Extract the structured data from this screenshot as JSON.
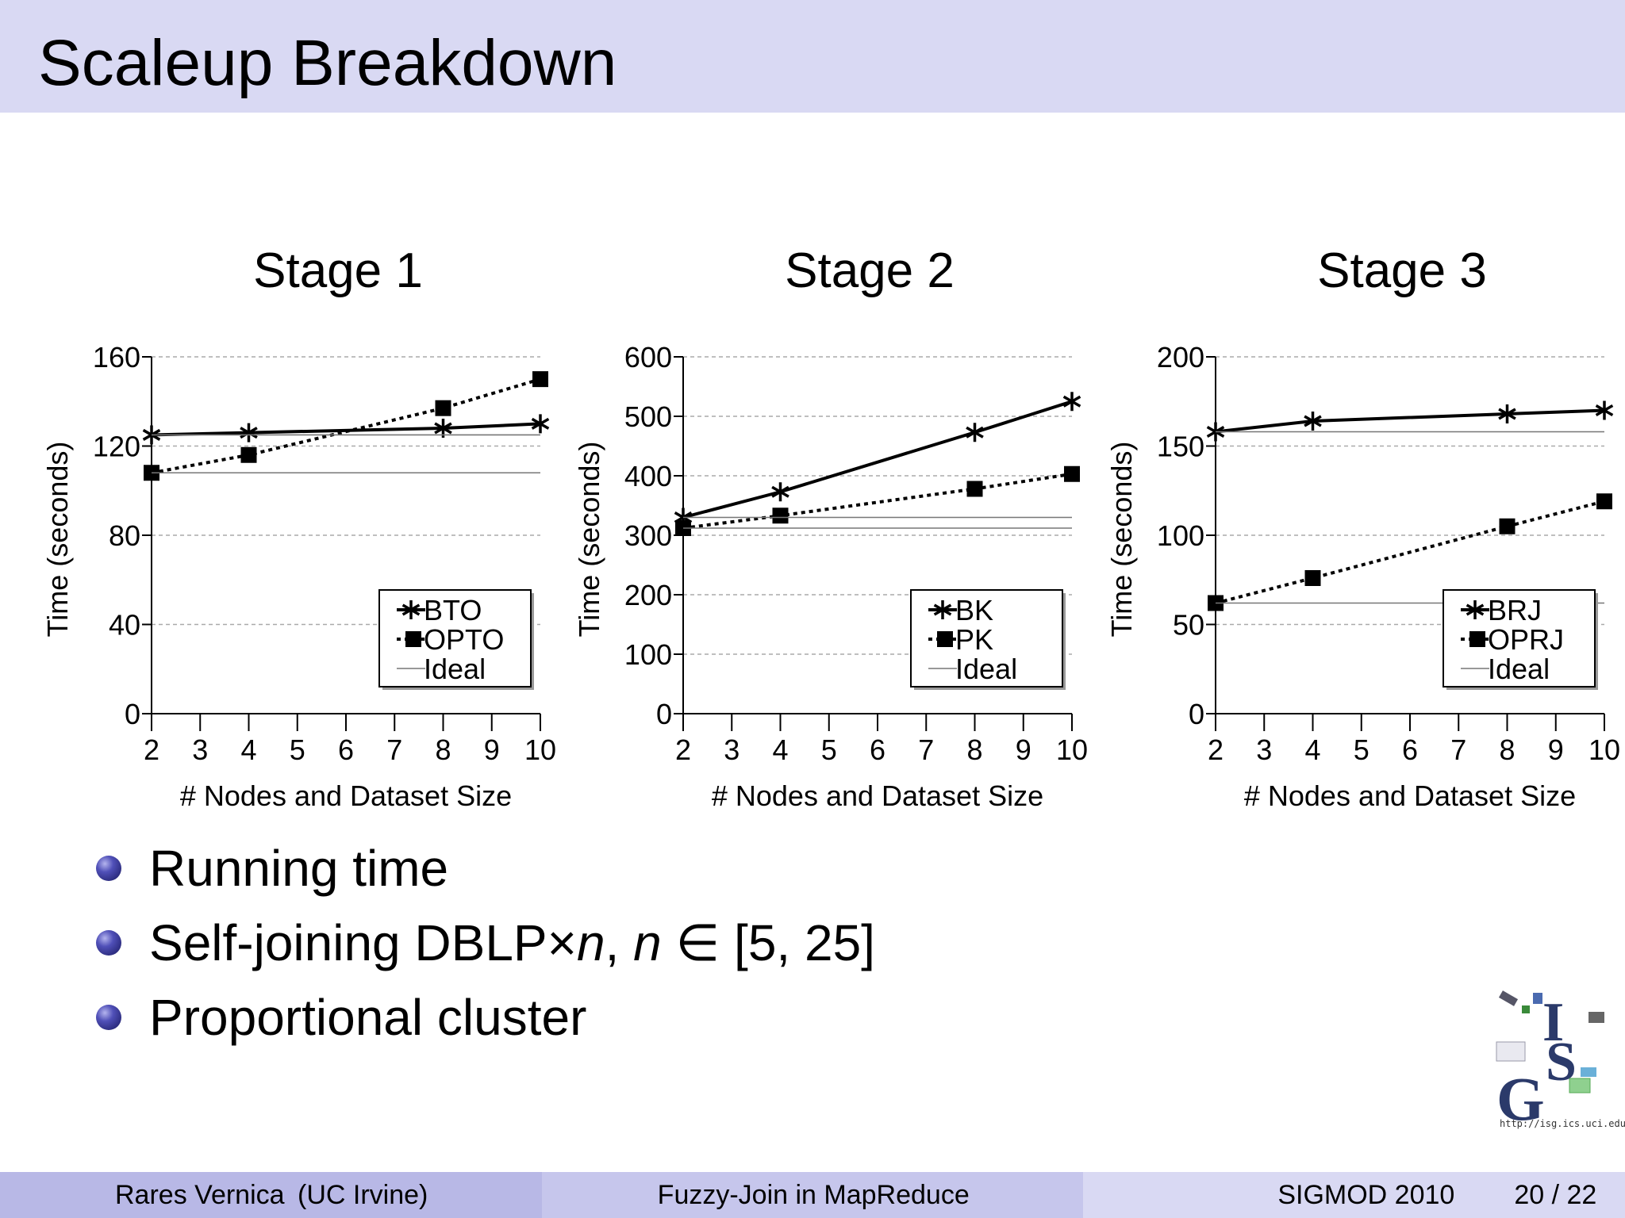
{
  "slide": {
    "title": "Scaleup Breakdown"
  },
  "chart_data": [
    {
      "type": "line",
      "title": "Stage 1",
      "xlabel": "# Nodes and Dataset Size",
      "ylabel": "Time (seconds)",
      "xlim": [
        2,
        10
      ],
      "ylim": [
        0,
        160
      ],
      "xticks": [
        2,
        3,
        4,
        5,
        6,
        7,
        8,
        9,
        10
      ],
      "yticks": [
        0,
        40,
        80,
        120,
        160
      ],
      "grid": "horizontal dashed",
      "legend_position": "bottom-right",
      "series": [
        {
          "name": "BTO",
          "marker": "asterisk",
          "line": "solid",
          "x": [
            2,
            4,
            8,
            10
          ],
          "y": [
            125,
            126,
            128,
            130
          ]
        },
        {
          "name": "OPTO",
          "marker": "square",
          "line": "dotted",
          "x": [
            2,
            4,
            8,
            10
          ],
          "y": [
            108,
            116,
            137,
            150
          ]
        },
        {
          "name": "Ideal",
          "marker": "none",
          "line": "thin",
          "x": [
            2,
            10
          ],
          "y": [
            108,
            108
          ],
          "y2": [
            125,
            125
          ]
        }
      ]
    },
    {
      "type": "line",
      "title": "Stage 2",
      "xlabel": "# Nodes and Dataset Size",
      "ylabel": "Time (seconds)",
      "xlim": [
        2,
        10
      ],
      "ylim": [
        0,
        600
      ],
      "xticks": [
        2,
        3,
        4,
        5,
        6,
        7,
        8,
        9,
        10
      ],
      "yticks": [
        0,
        100,
        200,
        300,
        400,
        500,
        600
      ],
      "grid": "horizontal dashed",
      "legend_position": "bottom-right",
      "series": [
        {
          "name": "BK",
          "marker": "asterisk",
          "line": "solid",
          "x": [
            2,
            4,
            8,
            10
          ],
          "y": [
            330,
            373,
            473,
            525
          ]
        },
        {
          "name": "PK",
          "marker": "square",
          "line": "dotted",
          "x": [
            2,
            4,
            8,
            10
          ],
          "y": [
            312,
            333,
            378,
            403
          ]
        },
        {
          "name": "Ideal",
          "marker": "none",
          "line": "thin",
          "x": [
            2,
            10
          ],
          "y": [
            312,
            312
          ],
          "y2": [
            330,
            330
          ]
        }
      ]
    },
    {
      "type": "line",
      "title": "Stage 3",
      "xlabel": "# Nodes and Dataset Size",
      "ylabel": "Time (seconds)",
      "xlim": [
        2,
        10
      ],
      "ylim": [
        0,
        200
      ],
      "xticks": [
        2,
        3,
        4,
        5,
        6,
        7,
        8,
        9,
        10
      ],
      "yticks": [
        0,
        50,
        100,
        150,
        200
      ],
      "grid": "horizontal dashed",
      "legend_position": "bottom-right",
      "series": [
        {
          "name": "BRJ",
          "marker": "asterisk",
          "line": "solid",
          "x": [
            2,
            4,
            8,
            10
          ],
          "y": [
            158,
            164,
            168,
            170
          ]
        },
        {
          "name": "OPRJ",
          "marker": "square",
          "line": "dotted",
          "x": [
            2,
            4,
            8,
            10
          ],
          "y": [
            62,
            76,
            105,
            119
          ]
        },
        {
          "name": "Ideal",
          "marker": "none",
          "line": "thin",
          "x": [
            2,
            10
          ],
          "y": [
            62,
            62
          ],
          "y2": [
            158,
            158
          ]
        }
      ]
    }
  ],
  "bullets": {
    "item1": "Running time",
    "item2_a": "Self-joining DBLP",
    "item2_times": "×",
    "item2_n1": "n",
    "item2_comma": ", ",
    "item2_n2": "n",
    "item2_in": " ∈ ",
    "item2_range": "[5, 25]",
    "item3": "Proportional cluster"
  },
  "logo": {
    "url_text": "http://isg.ics.uci.edu",
    "letters": "ISG"
  },
  "footer": {
    "author": "Rares Vernica",
    "affiliation": "(UC Irvine)",
    "talk_title": "Fuzzy-Join in MapReduce",
    "venue": "SIGMOD 2010",
    "page": "20 / 22"
  },
  "colors": {
    "title_bar": "#d9d9f3",
    "footer_left": "#b8b8e6",
    "footer_mid": "#c6c6ec",
    "footer_right": "#d9d9f3",
    "bullet": "#2a2a8a"
  }
}
